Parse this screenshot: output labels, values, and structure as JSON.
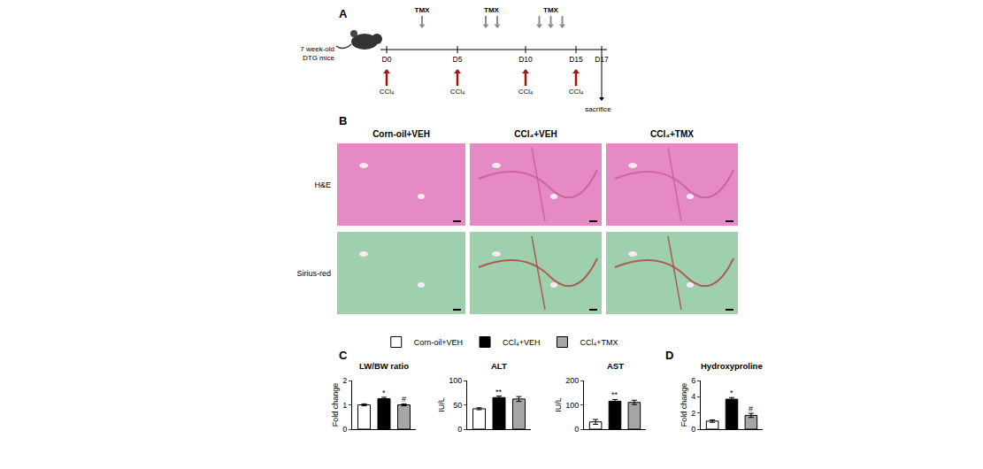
{
  "panel_labels": [
    "A",
    "B",
    "C",
    "D"
  ],
  "timeline": {
    "subject": [
      "7 week-old",
      "DTG mice"
    ],
    "days": [
      "D0",
      "D5",
      "D10",
      "D15",
      "D17"
    ],
    "tmx_label": "TMX",
    "tmx_arrows": [
      1,
      2,
      3
    ],
    "ccl4_label": "CCl₄",
    "ccl4_injection": [
      true,
      true,
      true,
      true,
      false
    ],
    "end_label": "sacrifice"
  },
  "histology": {
    "columns": [
      "Corn-oil+VEH",
      "CCl₄+VEH",
      "CCl₄+TMX"
    ],
    "rows": [
      "H&E",
      "Sirius-red"
    ]
  },
  "chart_data": [
    {
      "type": "bar",
      "title": "LW/BW ratio",
      "y_label": "Fold change",
      "categories": [
        null
      ],
      "series": [
        {
          "name": "Corn-oil+VEH",
          "color": "#ffffff",
          "values": [
            1.0
          ],
          "errors": [
            0.04
          ]
        },
        {
          "name": "CCl₄+VEH",
          "color": "#000000",
          "values": [
            1.25
          ],
          "errors": [
            0.06
          ],
          "significance": [
            "*"
          ]
        },
        {
          "name": "CCl₄+TMX",
          "color": "#a6a6a6",
          "values": [
            1.0
          ],
          "errors": [
            0.04
          ],
          "significance": [
            "#"
          ]
        }
      ],
      "ylim": [
        0,
        2
      ],
      "yticks": [
        0,
        1,
        2
      ],
      "tick_labels": "y",
      "legend": "top"
    },
    {
      "type": "bar",
      "title": "ALT",
      "y_label": "IU/L",
      "categories": [
        null
      ],
      "series": [
        {
          "name": "Corn-oil+VEH",
          "color": "#ffffff",
          "values": [
            42
          ],
          "errors": [
            2
          ]
        },
        {
          "name": "CCl₄+VEH",
          "color": "#000000",
          "values": [
            65
          ],
          "errors": [
            3
          ],
          "significance": [
            "**"
          ]
        },
        {
          "name": "CCl₄+TMX",
          "color": "#a6a6a6",
          "values": [
            62
          ],
          "errors": [
            5
          ]
        }
      ],
      "ylim": [
        0,
        100
      ],
      "yticks": [
        0,
        50,
        100
      ],
      "tick_labels": "y"
    },
    {
      "type": "bar",
      "title": "AST",
      "y_label": "IU/L",
      "categories": [
        null
      ],
      "series": [
        {
          "name": "Corn-oil+VEH",
          "color": "#ffffff",
          "values": [
            30
          ],
          "errors": [
            10
          ]
        },
        {
          "name": "CCl₄+VEH",
          "color": "#000000",
          "values": [
            115
          ],
          "errors": [
            7
          ],
          "significance": [
            "**"
          ]
        },
        {
          "name": "CCl₄+TMX",
          "color": "#a6a6a6",
          "values": [
            110
          ],
          "errors": [
            9
          ]
        }
      ],
      "ylim": [
        0,
        200
      ],
      "yticks": [
        0,
        100,
        200
      ],
      "tick_labels": "y"
    },
    {
      "type": "bar",
      "title": "Hydroxyproline",
      "y_label": "Fold change",
      "categories": [
        null
      ],
      "series": [
        {
          "name": "Corn-oil+VEH",
          "color": "#ffffff",
          "values": [
            1.0
          ],
          "errors": [
            0.15
          ]
        },
        {
          "name": "CCl₄+VEH",
          "color": "#000000",
          "values": [
            3.7
          ],
          "errors": [
            0.2
          ],
          "significance": [
            "*"
          ]
        },
        {
          "name": "CCl₄+TMX",
          "color": "#a6a6a6",
          "values": [
            1.7
          ],
          "errors": [
            0.25
          ],
          "significance": [
            "#"
          ]
        }
      ],
      "ylim": [
        0,
        6
      ],
      "yticks": [
        0,
        2,
        4,
        6
      ],
      "tick_labels": "y"
    }
  ]
}
